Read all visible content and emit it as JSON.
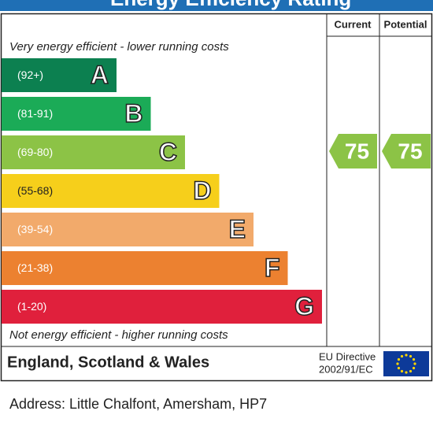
{
  "header": {
    "title": "Energy Efficiency Rating"
  },
  "columns": {
    "current": "Current",
    "potential": "Potential"
  },
  "top_note": "Very energy efficient - lower running costs",
  "bottom_note": "Not energy efficient - higher running costs",
  "bands": [
    {
      "range": "(92+)",
      "letter": "A",
      "color": "#0c8050"
    },
    {
      "range": "(81-91)",
      "letter": "B",
      "color": "#1bab57"
    },
    {
      "range": "(69-80)",
      "letter": "C",
      "color": "#8cc346"
    },
    {
      "range": "(55-68)",
      "letter": "D",
      "color": "#f6cf1b"
    },
    {
      "range": "(39-54)",
      "letter": "E",
      "color": "#f2aa6b"
    },
    {
      "range": "(21-38)",
      "letter": "F",
      "color": "#ec8130"
    },
    {
      "range": "(1-20)",
      "letter": "G",
      "color": "#e0203c"
    }
  ],
  "current": {
    "value": 75,
    "color": "#8cc346"
  },
  "potential": {
    "value": 75,
    "color": "#8cc346"
  },
  "footer": {
    "region": "England, Scotland & Wales",
    "directive": [
      "EU Directive",
      "2002/91/EC"
    ]
  },
  "address": "Address: Little Chalfont, Amersham, HP7"
}
